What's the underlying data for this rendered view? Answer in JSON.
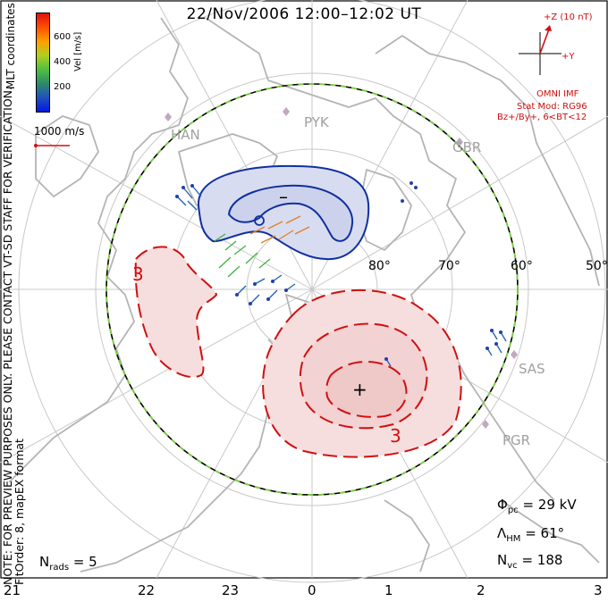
{
  "title": "22/Nov/2006 12:00–12:02 UT",
  "colorbar": {
    "axis_label": "Vel [m/s]",
    "ticks": [
      "600",
      "400",
      "200"
    ],
    "colors": [
      "#0018e0",
      "#2050c0",
      "#2e8a6a",
      "#50c040",
      "#b0d020",
      "#ffa000",
      "#ff5000",
      "#e01010"
    ]
  },
  "coordinate_label": "MLT coordinates",
  "scale_vector": {
    "label": "1000 m/s",
    "color": "#d01010"
  },
  "note": {
    "line1": "NOTE: FOR PREVIEW PURPOSES ONLY. PLEASE CONTACT VT-SD STAFF FOR VERIFICATION.",
    "line2": "FitOrder: 8, mapEX format"
  },
  "imf": {
    "z_label": "+Z (10 nT)",
    "y_label": "+Y",
    "source": "OMNI IMF",
    "model": "Stat Mod: RG96",
    "condition": "Bz+/By+, 6<BT<12"
  },
  "stations": [
    "HAN",
    "PYK",
    "GBR",
    "SAS",
    "PGR"
  ],
  "latitudes": [
    "80°",
    "70°",
    "60°",
    "50°"
  ],
  "mlt_labels": [
    "21",
    "22",
    "23",
    "0",
    "1",
    "2",
    "3"
  ],
  "contours": {
    "negative_symbol": "–",
    "positive_symbol": "+",
    "label_left": "3",
    "label_bottom": "3"
  },
  "stats": {
    "phi_pc_value": "= 29 kV",
    "lambda_hm_value": "= 61°",
    "n_vc_value": "= 188",
    "n_rads_value": "= 5"
  }
}
